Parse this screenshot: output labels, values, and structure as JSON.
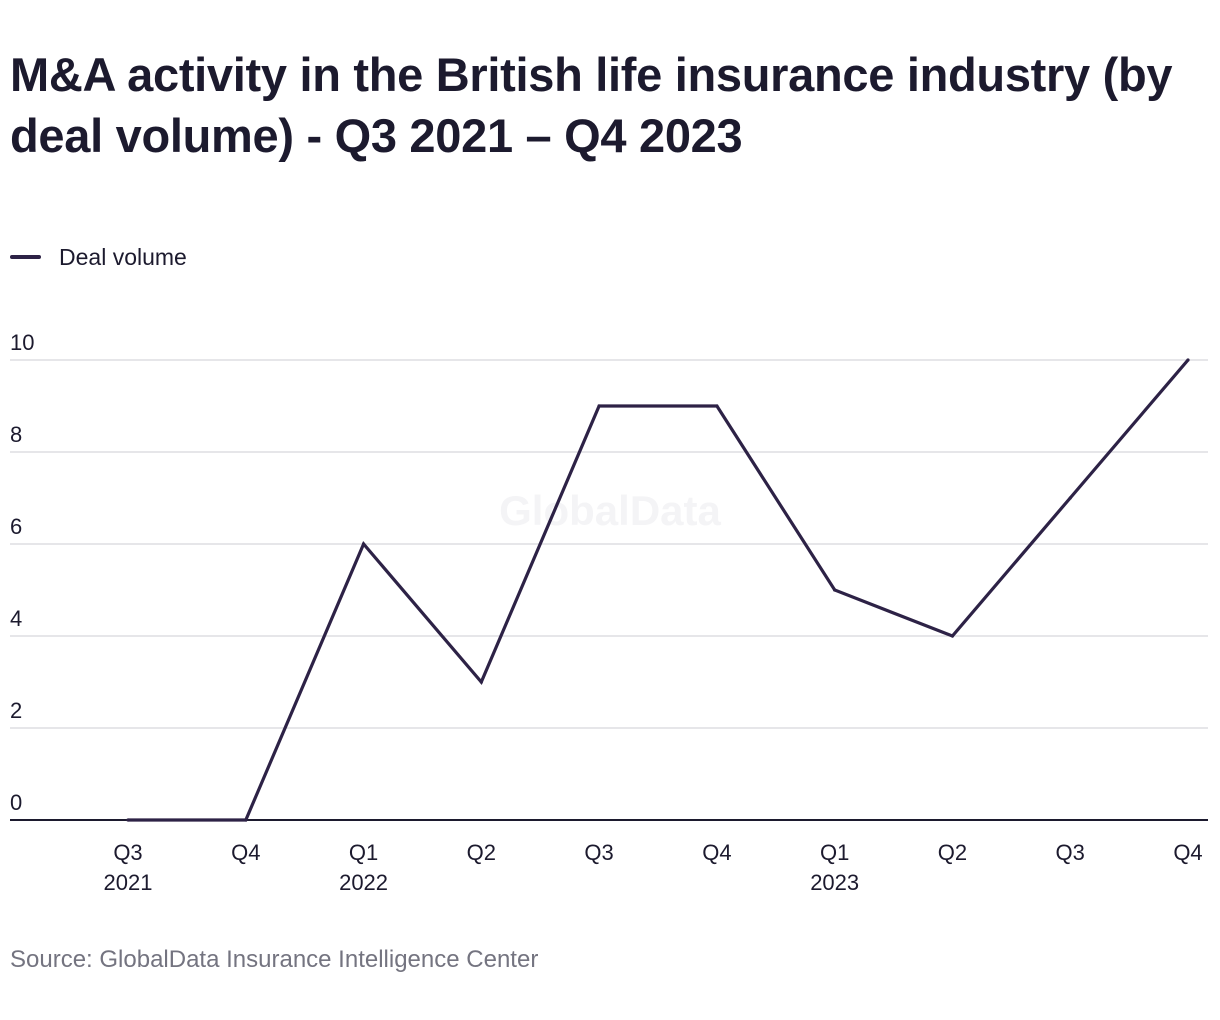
{
  "colors": {
    "series": "#2d2246",
    "grid": "#d6d6dc",
    "axis": "#1c1a2e",
    "text": "#1c1a2e",
    "source": "#747480"
  },
  "watermark": "GlobalData",
  "source": "Source: GlobalData Insurance Intelligence Center",
  "chart_data": {
    "type": "line",
    "title": "M&A activity in the British life insurance industry (by deal volume) - Q3 2021 – Q4 2023",
    "xlabel": "",
    "ylabel": "",
    "categories": [
      {
        "quarter": "Q3",
        "year": "2021"
      },
      {
        "quarter": "Q4",
        "year": ""
      },
      {
        "quarter": "Q1",
        "year": "2022"
      },
      {
        "quarter": "Q2",
        "year": ""
      },
      {
        "quarter": "Q3",
        "year": ""
      },
      {
        "quarter": "Q4",
        "year": ""
      },
      {
        "quarter": "Q1",
        "year": "2023"
      },
      {
        "quarter": "Q2",
        "year": ""
      },
      {
        "quarter": "Q3",
        "year": ""
      },
      {
        "quarter": "Q4",
        "year": ""
      }
    ],
    "series": [
      {
        "name": "Deal volume",
        "values": [
          0,
          0,
          6,
          3,
          9,
          9,
          5,
          4,
          7,
          10
        ]
      }
    ],
    "ylim": [
      0,
      10
    ],
    "yticks": [
      0,
      2,
      4,
      6,
      8,
      10
    ],
    "grid": true,
    "legend": "top-left"
  }
}
